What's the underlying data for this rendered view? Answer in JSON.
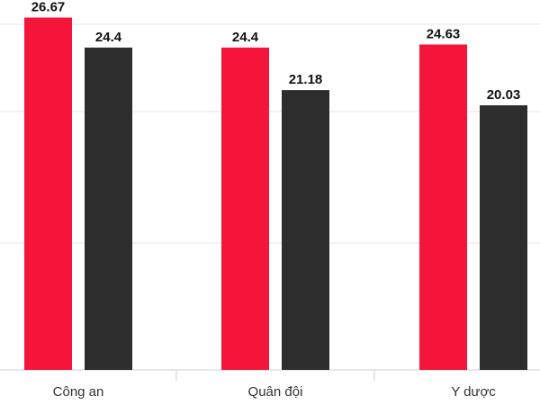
{
  "chart_data": {
    "type": "bar",
    "categories": [
      "Công an",
      "Quân đội",
      "Y dược"
    ],
    "series": [
      {
        "values": [
          26.67,
          24.4,
          24.63
        ],
        "color": "#f5153a"
      },
      {
        "values": [
          24.4,
          21.18,
          20.03
        ],
        "color": "#2d2d2d"
      }
    ],
    "ylim": [
      0,
      28
    ],
    "grid": true,
    "legend": "none",
    "title": "",
    "xlabel": "",
    "ylabel": ""
  }
}
